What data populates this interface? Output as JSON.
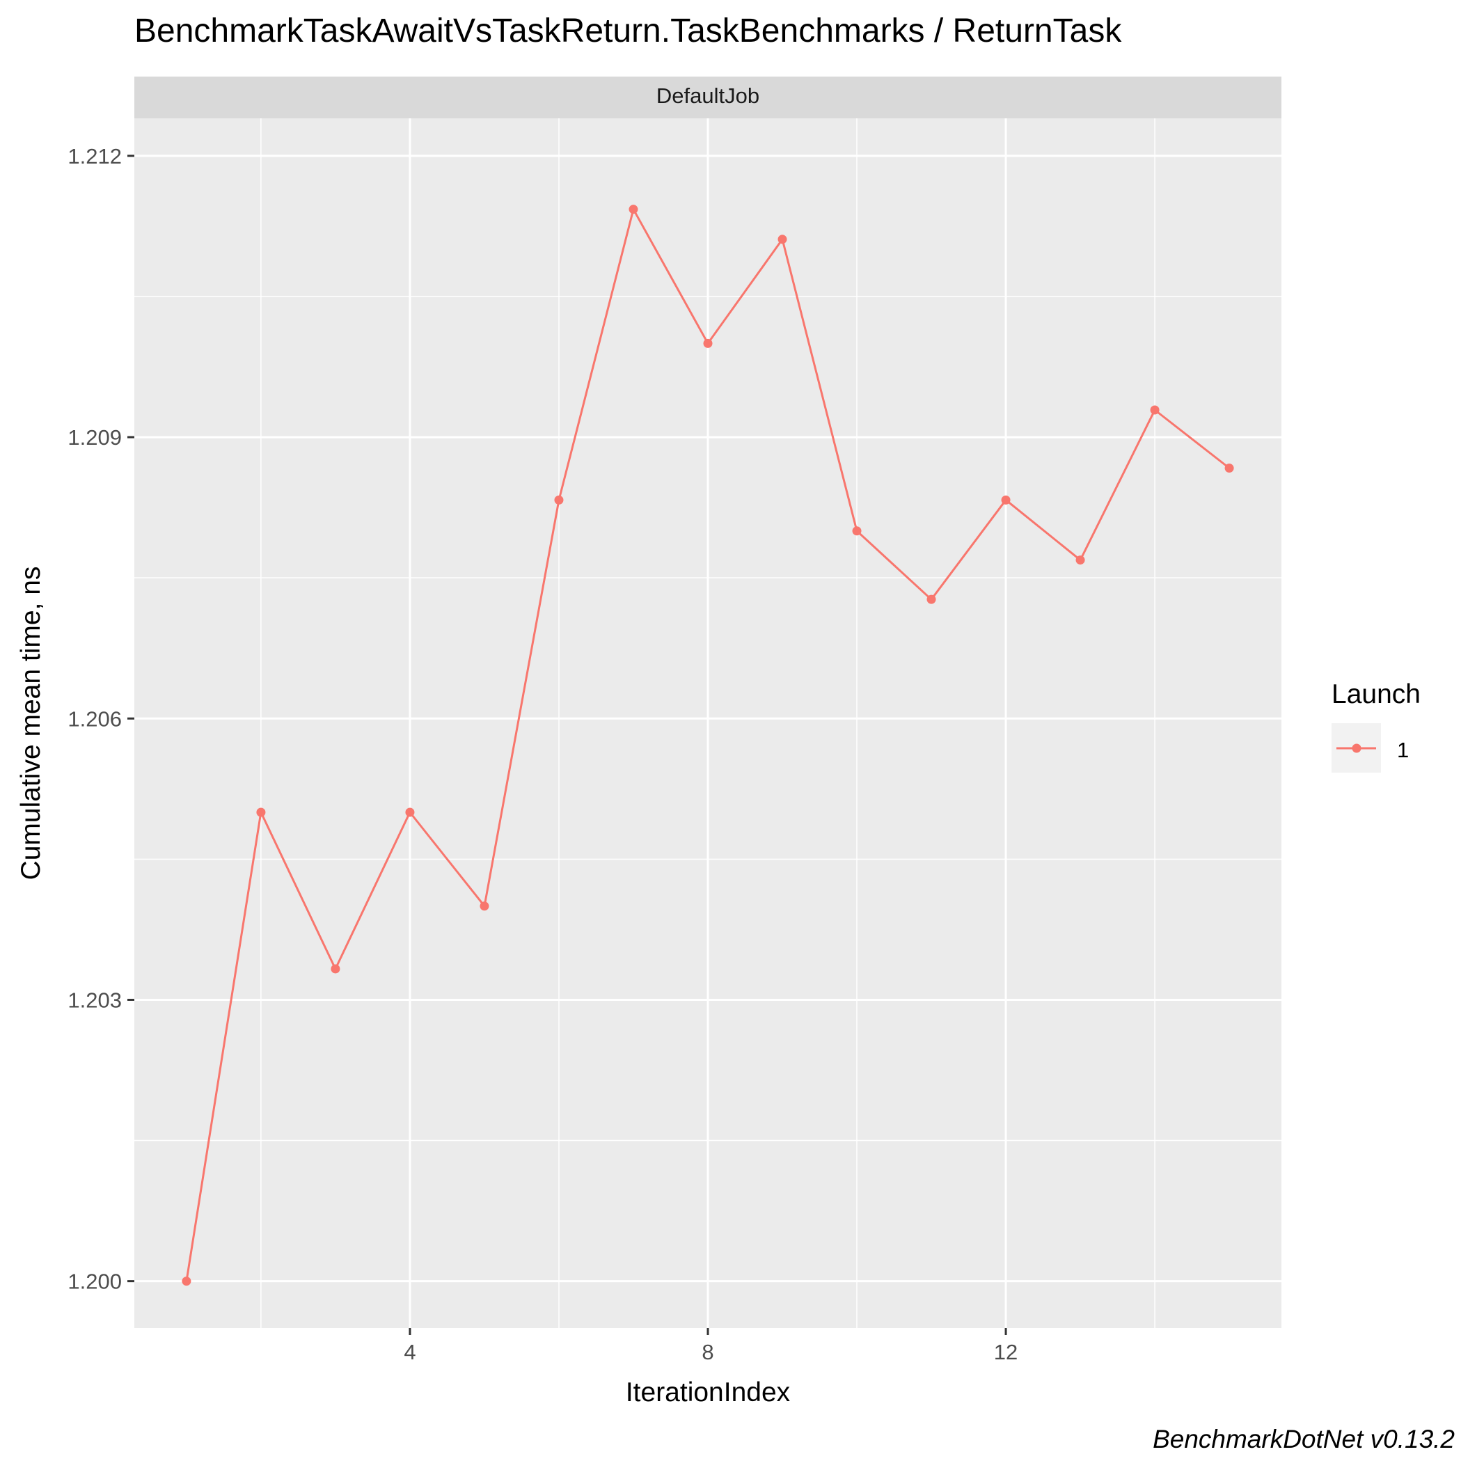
{
  "chart_data": {
    "type": "line",
    "title": "BenchmarkTaskAwaitVsTaskReturn.TaskBenchmarks / ReturnTask",
    "facet_label": "DefaultJob",
    "xlabel": "IterationIndex",
    "ylabel": "Cumulative mean time, ns",
    "caption": "BenchmarkDotNet v0.13.2",
    "x_ticks": [
      "4",
      "8",
      "12"
    ],
    "y_ticks": [
      "1.200",
      "1.203",
      "1.206",
      "1.209",
      "1.212"
    ],
    "xlim": [
      0.3,
      15.7
    ],
    "ylim": [
      1.1995,
      1.2124
    ],
    "grid": true,
    "legend": {
      "title": "Launch",
      "placement": "right",
      "entries": [
        "1"
      ]
    },
    "series": [
      {
        "name": "1",
        "color": "#F8766D",
        "x": [
          1,
          2,
          3,
          4,
          5,
          6,
          7,
          8,
          9,
          10,
          11,
          12,
          13,
          14,
          15
        ],
        "y": [
          1.2,
          1.205,
          1.20333,
          1.205,
          1.204,
          1.20833,
          1.21143,
          1.21,
          1.21111,
          1.208,
          1.20727,
          1.20833,
          1.20769,
          1.20929,
          1.20867
        ]
      }
    ]
  }
}
